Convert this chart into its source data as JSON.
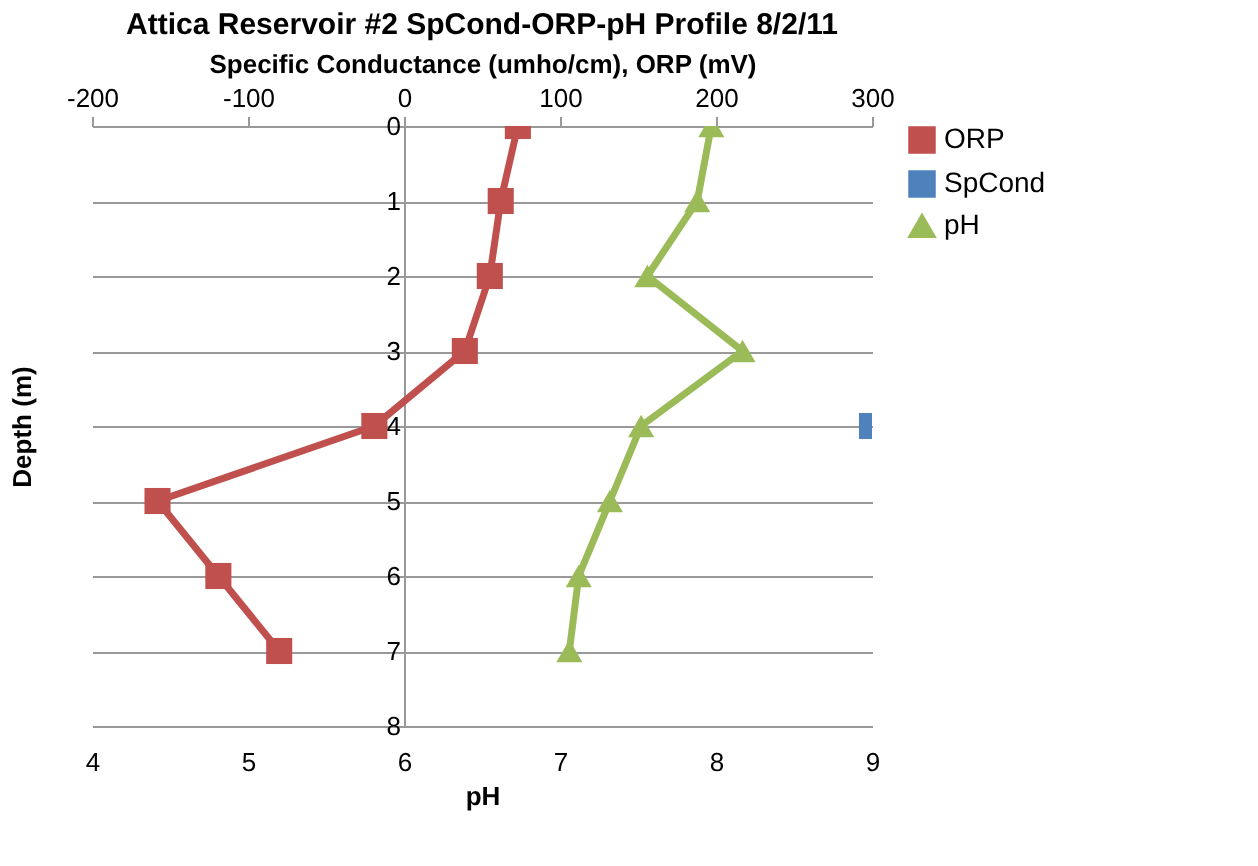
{
  "chart_data": {
    "type": "line",
    "title": "Attica Reservoir #2 SpCond-ORP-pH Profile 8/2/11",
    "orientation": "horizontal",
    "x": [
      0,
      1,
      2,
      3,
      4,
      5,
      6,
      7
    ],
    "ylabel": "Depth (m)",
    "ylim": [
      8,
      0
    ],
    "yticks": [
      0,
      1,
      2,
      3,
      4,
      5,
      6,
      7,
      8
    ],
    "xlabel": "pH",
    "xlim": [
      4,
      9
    ],
    "xticks": [
      4,
      5,
      6,
      7,
      8,
      9
    ],
    "x2label": "Specific Conductance  (umho/cm), ORP (mV)",
    "x2lim": [
      -200,
      300
    ],
    "x2ticks": [
      -200,
      -100,
      0,
      100,
      200,
      300
    ],
    "series": [
      {
        "name": "ORP",
        "color": "#c0504d",
        "marker": "square",
        "axis": "x2",
        "values": [
          73,
          62,
          55,
          39,
          -19,
          -158,
          -119,
          -80
        ]
      },
      {
        "name": "SpCond",
        "color": "#4f81bd",
        "marker": "square",
        "axis": "x2",
        "values": [
          null,
          null,
          null,
          null,
          300,
          null,
          null,
          null
        ]
      },
      {
        "name": "pH",
        "color": "#9bbb59",
        "marker": "triangle",
        "values": [
          7.97,
          7.88,
          7.56,
          8.17,
          7.52,
          7.32,
          7.12,
          7.06
        ]
      }
    ],
    "grid": "y",
    "legend": "right"
  }
}
